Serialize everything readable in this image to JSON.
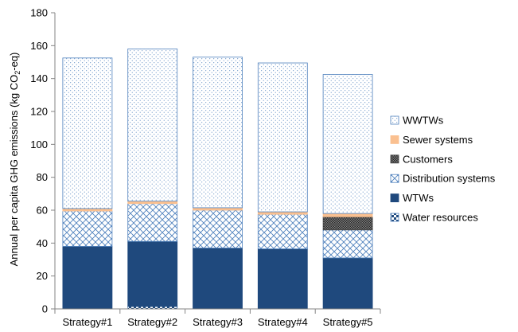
{
  "chart_data": {
    "type": "bar",
    "stacked": true,
    "ylabel_prefix": "Annual per capita GHG emissions (kg CO",
    "ylabel_sub": "2",
    "ylabel_suffix": "-eq)",
    "ylim": [
      0,
      180
    ],
    "yticks": [
      0,
      20,
      40,
      60,
      80,
      100,
      120,
      140,
      160,
      180
    ],
    "grid": false,
    "legend_position": "right",
    "categories": [
      "Strategy#1",
      "Strategy#2",
      "Strategy#3",
      "Strategy#4",
      "Strategy#5"
    ],
    "series": [
      {
        "name": "Water resources",
        "pattern": "checker",
        "color": "#1f497d",
        "values": [
          0,
          1.5,
          0,
          0,
          0
        ]
      },
      {
        "name": "WTWs",
        "pattern": "solid",
        "color": "#1f497d",
        "values": [
          38,
          39.5,
          37,
          36.5,
          31
        ]
      },
      {
        "name": "Distribution systems",
        "pattern": "crosshatch",
        "color": "#4f81bd",
        "values": [
          21.5,
          23,
          23,
          21,
          17
        ]
      },
      {
        "name": "Customers",
        "pattern": "darkdots",
        "color": "#404040",
        "values": [
          0,
          0,
          0,
          0,
          8
        ]
      },
      {
        "name": "Sewer systems",
        "pattern": "solid",
        "color": "#fac090",
        "values": [
          1.5,
          1.5,
          1.5,
          1.5,
          2
        ]
      },
      {
        "name": "WWTWs",
        "pattern": "dots",
        "color": "#4f81bd",
        "values": [
          91.5,
          92.5,
          91.5,
          90.5,
          84.5
        ]
      }
    ]
  }
}
